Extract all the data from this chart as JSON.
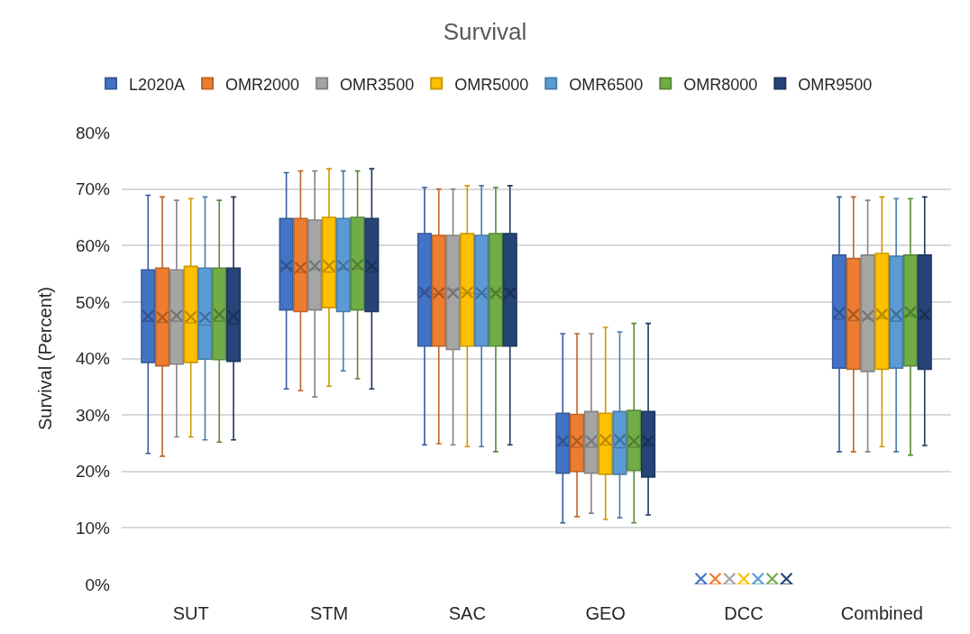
{
  "chart_data": {
    "type": "box",
    "title": "Survival",
    "ylabel": "Survival (Percent)",
    "categories": [
      "SUT",
      "STM",
      "SAC",
      "GEO",
      "DCC",
      "Combined"
    ],
    "series": [
      {
        "name": "L2020A",
        "color": "#4472c4",
        "boxes": [
          {
            "low": 23.2,
            "q1": 39.3,
            "median": 46.6,
            "q3": 55.7,
            "high": 68.9,
            "mean": 47.5
          },
          {
            "low": 34.6,
            "q1": 48.6,
            "median": 56.0,
            "q3": 64.8,
            "high": 72.9,
            "mean": 56.4
          },
          {
            "low": 24.7,
            "q1": 42.2,
            "median": 51.8,
            "q3": 62.1,
            "high": 70.3,
            "mean": 51.7
          },
          {
            "low": 10.9,
            "q1": 19.7,
            "median": 24.6,
            "q3": 30.3,
            "high": 44.4,
            "mean": 25.4
          },
          {
            "low": 0,
            "q1": 0,
            "median": 0,
            "q3": 0,
            "high": 0,
            "mean": 1
          },
          {
            "low": 23.5,
            "q1": 38.3,
            "median": 47.0,
            "q3": 58.3,
            "high": 68.6,
            "mean": 48.1
          }
        ]
      },
      {
        "name": "OMR2000",
        "color": "#ed7d31",
        "boxes": [
          {
            "low": 22.7,
            "q1": 38.7,
            "median": 46.4,
            "q3": 56.0,
            "high": 68.6,
            "mean": 47.3
          },
          {
            "low": 34.3,
            "q1": 48.3,
            "median": 55.3,
            "q3": 64.8,
            "high": 73.2,
            "mean": 56.1
          },
          {
            "low": 24.9,
            "q1": 42.2,
            "median": 51.4,
            "q3": 61.8,
            "high": 70.0,
            "mean": 51.6
          },
          {
            "low": 12.0,
            "q1": 20.0,
            "median": 24.3,
            "q3": 30.1,
            "high": 44.4,
            "mean": 25.4
          },
          {
            "low": 0,
            "q1": 0,
            "median": 0,
            "q3": 0,
            "high": 0,
            "mean": 1
          },
          {
            "low": 23.5,
            "q1": 38.1,
            "median": 46.7,
            "q3": 57.7,
            "high": 68.6,
            "mean": 47.8
          }
        ]
      },
      {
        "name": "OMR3500",
        "color": "#a5a5a5",
        "boxes": [
          {
            "low": 26.1,
            "q1": 39.0,
            "median": 46.6,
            "q3": 55.7,
            "high": 68.0,
            "mean": 47.6
          },
          {
            "low": 33.2,
            "q1": 48.6,
            "median": 55.8,
            "q3": 64.5,
            "high": 73.2,
            "mean": 56.4
          },
          {
            "low": 24.7,
            "q1": 41.6,
            "median": 52.2,
            "q3": 61.8,
            "high": 70.0,
            "mean": 51.6
          },
          {
            "low": 12.6,
            "q1": 19.7,
            "median": 24.3,
            "q3": 30.6,
            "high": 44.4,
            "mean": 25.4
          },
          {
            "low": 0,
            "q1": 0,
            "median": 0,
            "q3": 0,
            "high": 0,
            "mean": 1
          },
          {
            "low": 23.5,
            "q1": 37.7,
            "median": 47.0,
            "q3": 58.3,
            "high": 68.0,
            "mean": 47.5
          }
        ]
      },
      {
        "name": "OMR5000",
        "color": "#ffc000",
        "boxes": [
          {
            "low": 26.1,
            "q1": 39.3,
            "median": 46.3,
            "q3": 56.3,
            "high": 68.3,
            "mean": 47.4
          },
          {
            "low": 35.1,
            "q1": 49.0,
            "median": 55.3,
            "q3": 65.0,
            "high": 73.6,
            "mean": 56.4
          },
          {
            "low": 24.4,
            "q1": 42.2,
            "median": 51.6,
            "q3": 62.1,
            "high": 70.6,
            "mean": 51.7
          },
          {
            "low": 11.5,
            "q1": 19.5,
            "median": 24.7,
            "q3": 30.3,
            "high": 45.5,
            "mean": 25.6
          },
          {
            "low": 0,
            "q1": 0,
            "median": 0,
            "q3": 0,
            "high": 0,
            "mean": 1
          },
          {
            "low": 24.4,
            "q1": 38.1,
            "median": 47.1,
            "q3": 58.6,
            "high": 68.6,
            "mean": 47.8
          }
        ]
      },
      {
        "name": "OMR6500",
        "color": "#5b9bd5",
        "boxes": [
          {
            "low": 25.6,
            "q1": 39.9,
            "median": 45.9,
            "q3": 56.0,
            "high": 68.6,
            "mean": 47.3
          },
          {
            "low": 37.8,
            "q1": 48.3,
            "median": 55.8,
            "q3": 64.8,
            "high": 73.2,
            "mean": 56.4
          },
          {
            "low": 24.4,
            "q1": 42.2,
            "median": 51.4,
            "q3": 61.8,
            "high": 70.6,
            "mean": 51.6
          },
          {
            "low": 11.8,
            "q1": 19.5,
            "median": 24.2,
            "q3": 30.6,
            "high": 44.7,
            "mean": 25.6
          },
          {
            "low": 0,
            "q1": 0,
            "median": 0,
            "q3": 0,
            "high": 0,
            "mean": 1
          },
          {
            "low": 23.5,
            "q1": 38.3,
            "median": 46.6,
            "q3": 58.1,
            "high": 68.3,
            "mean": 47.8
          }
        ]
      },
      {
        "name": "OMR8000",
        "color": "#70ad47",
        "boxes": [
          {
            "low": 25.2,
            "q1": 39.8,
            "median": 46.6,
            "q3": 56.0,
            "high": 68.0,
            "mean": 47.8
          },
          {
            "low": 36.4,
            "q1": 48.6,
            "median": 55.9,
            "q3": 65.0,
            "high": 73.2,
            "mean": 56.6
          },
          {
            "low": 23.5,
            "q1": 42.2,
            "median": 51.8,
            "q3": 62.1,
            "high": 70.3,
            "mean": 51.6
          },
          {
            "low": 10.9,
            "q1": 20.2,
            "median": 24.3,
            "q3": 30.8,
            "high": 46.2,
            "mean": 25.4
          },
          {
            "low": 0,
            "q1": 0,
            "median": 0,
            "q3": 0,
            "high": 0,
            "mean": 1
          },
          {
            "low": 22.9,
            "q1": 38.7,
            "median": 47.5,
            "q3": 58.3,
            "high": 68.3,
            "mean": 48.2
          }
        ]
      },
      {
        "name": "OMR9500",
        "color": "#264478",
        "boxes": [
          {
            "low": 25.6,
            "q1": 39.5,
            "median": 46.2,
            "q3": 56.0,
            "high": 68.6,
            "mean": 47.5
          },
          {
            "low": 34.6,
            "q1": 48.3,
            "median": 55.3,
            "q3": 64.8,
            "high": 73.6,
            "mean": 56.4
          },
          {
            "low": 24.7,
            "q1": 42.2,
            "median": 52.2,
            "q3": 62.1,
            "high": 70.6,
            "mean": 51.6
          },
          {
            "low": 12.3,
            "q1": 19.0,
            "median": 24.6,
            "q3": 30.6,
            "high": 46.2,
            "mean": 25.4
          },
          {
            "low": 0,
            "q1": 0,
            "median": 0,
            "q3": 0,
            "high": 0,
            "mean": 1
          },
          {
            "low": 24.6,
            "q1": 38.1,
            "median": 47.1,
            "q3": 58.3,
            "high": 68.6,
            "mean": 47.8
          }
        ]
      }
    ],
    "ylim": [
      0,
      80
    ],
    "yticks": [
      {
        "value": 0,
        "label": "0%"
      },
      {
        "value": 10,
        "label": "10%"
      },
      {
        "value": 20,
        "label": "20%"
      },
      {
        "value": 30,
        "label": "30%"
      },
      {
        "value": 40,
        "label": "40%"
      },
      {
        "value": 50,
        "label": "50%"
      },
      {
        "value": 60,
        "label": "60%"
      },
      {
        "value": 70,
        "label": "70%"
      },
      {
        "value": 80,
        "label": "80%"
      }
    ],
    "grid": "y",
    "legend": "top"
  }
}
